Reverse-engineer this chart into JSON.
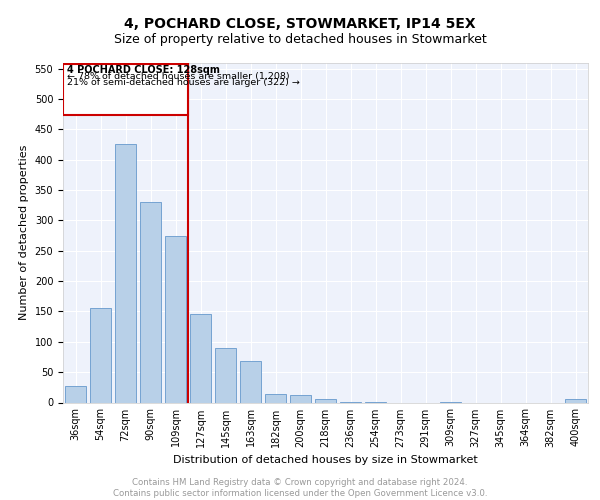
{
  "title": "4, POCHARD CLOSE, STOWMARKET, IP14 5EX",
  "subtitle": "Size of property relative to detached houses in Stowmarket",
  "xlabel": "Distribution of detached houses by size in Stowmarket",
  "ylabel": "Number of detached properties",
  "categories": [
    "36sqm",
    "54sqm",
    "72sqm",
    "90sqm",
    "109sqm",
    "127sqm",
    "145sqm",
    "163sqm",
    "182sqm",
    "200sqm",
    "218sqm",
    "236sqm",
    "254sqm",
    "273sqm",
    "291sqm",
    "309sqm",
    "327sqm",
    "345sqm",
    "364sqm",
    "382sqm",
    "400sqm"
  ],
  "values": [
    28,
    155,
    425,
    330,
    275,
    145,
    90,
    68,
    14,
    12,
    5,
    1,
    1,
    0,
    0,
    1,
    0,
    0,
    0,
    0,
    5
  ],
  "bar_color": "#b8d0e8",
  "bar_edge_color": "#6699cc",
  "reference_line_index": 5,
  "reference_label": "4 POCHARD CLOSE: 128sqm",
  "annotation_line1": "← 78% of detached houses are smaller (1,208)",
  "annotation_line2": "21% of semi-detached houses are larger (322) →",
  "vline_color": "#cc0000",
  "box_color": "#cc0000",
  "ylim": [
    0,
    560
  ],
  "yticks": [
    0,
    50,
    100,
    150,
    200,
    250,
    300,
    350,
    400,
    450,
    500,
    550
  ],
  "title_fontsize": 10,
  "subtitle_fontsize": 9,
  "axis_label_fontsize": 8,
  "tick_fontsize": 7,
  "footer_text": "Contains HM Land Registry data © Crown copyright and database right 2024.\nContains public sector information licensed under the Open Government Licence v3.0.",
  "plot_bg_color": "#eef2fb"
}
